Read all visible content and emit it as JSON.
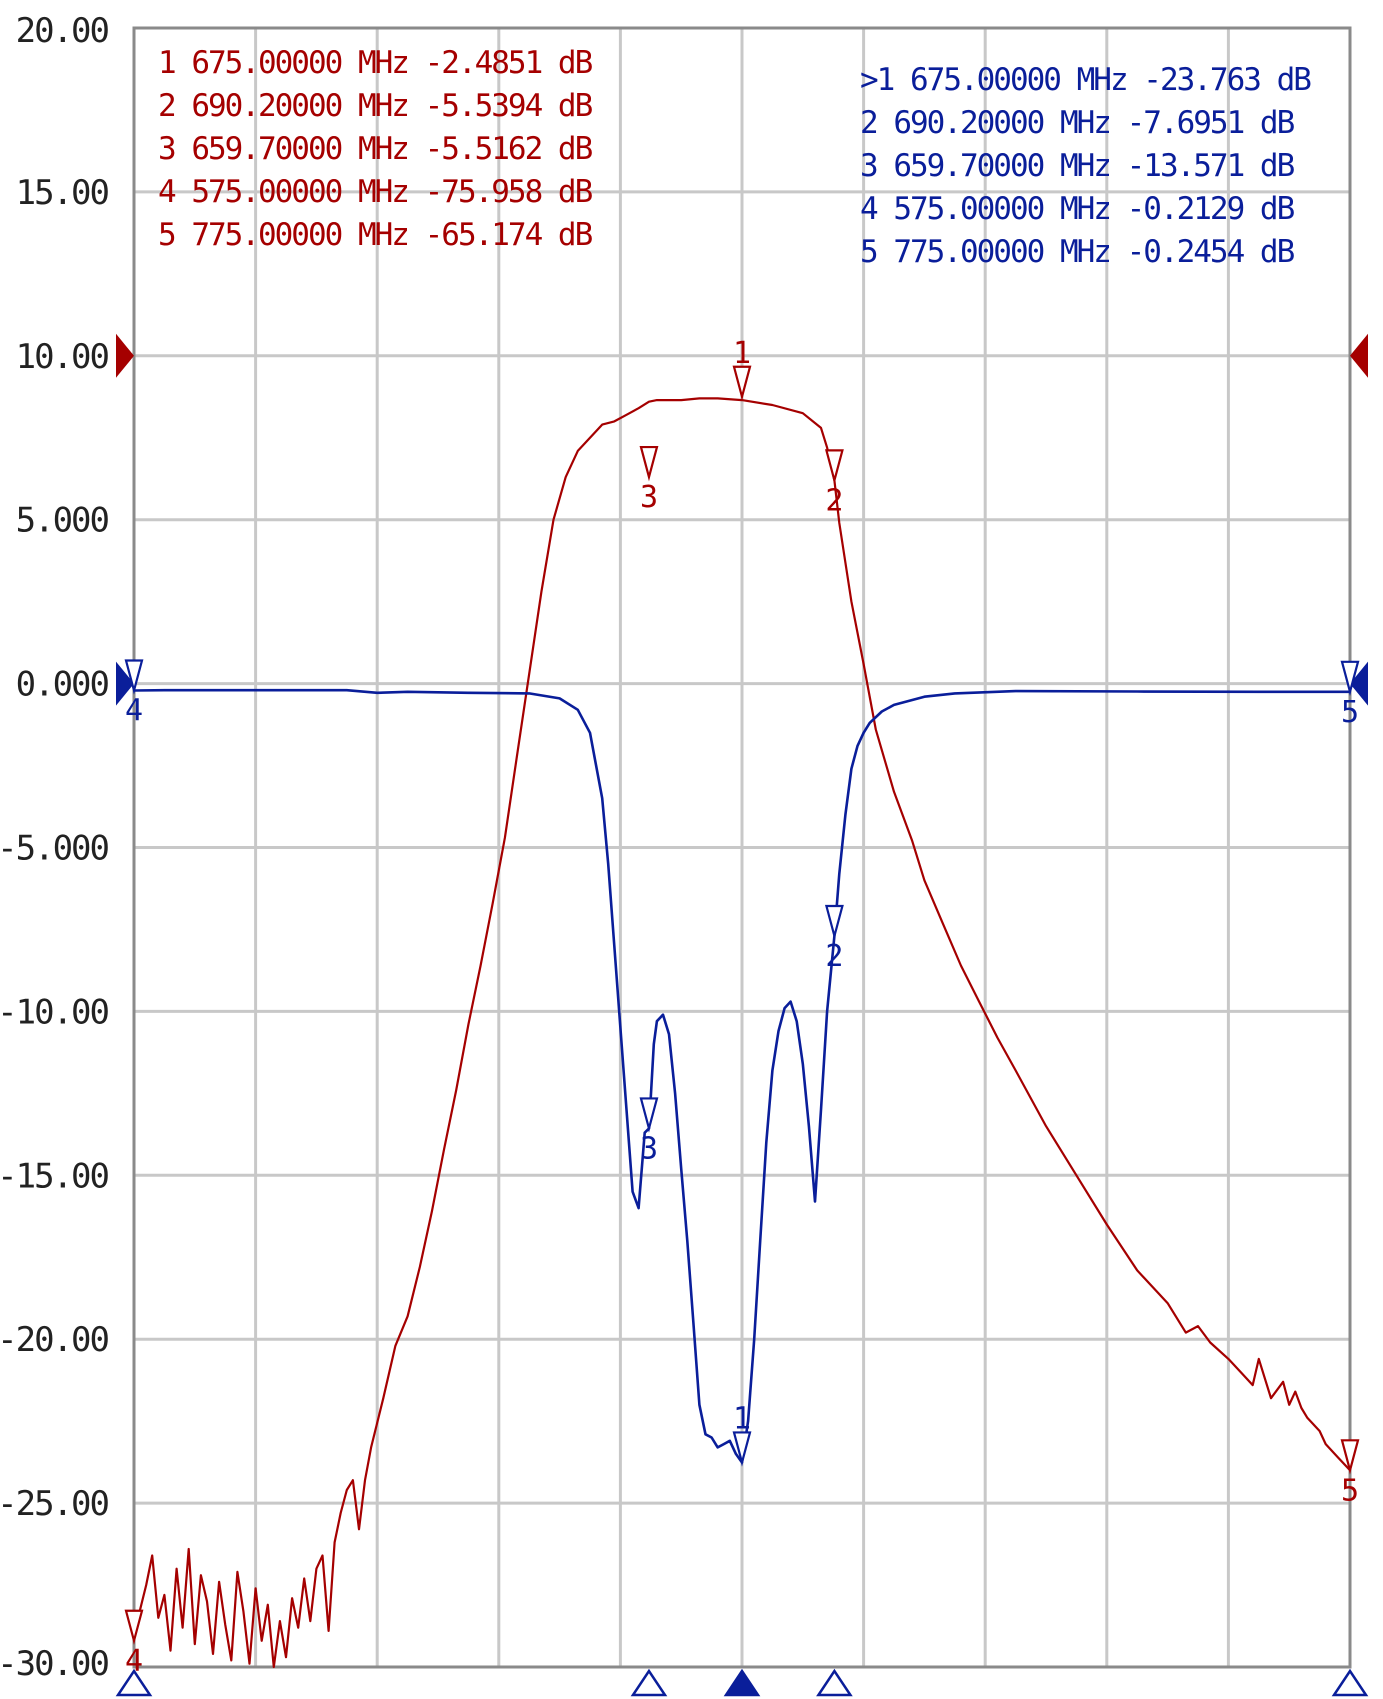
{
  "colors": {
    "trace_red": "#a50000",
    "trace_blue": "#0a1e9a",
    "grid": "#c8c8c8",
    "frame": "#8a8a8a",
    "background": "#ffffff"
  },
  "chart_data": {
    "type": "line",
    "title": "",
    "xlabel": "",
    "ylabel": "",
    "x_unit": "MHz",
    "xlim": [
      575,
      775
    ],
    "ylim": [
      -30,
      20
    ],
    "x_divisions": 10,
    "grid": true,
    "y_ticks": [
      "20.00",
      "15.00",
      "10.00",
      "5.000",
      "0.000",
      "-5.000",
      "-10.00",
      "-15.00",
      "-20.00",
      "-25.00",
      "-30.00"
    ],
    "y_tick_values": [
      20,
      15,
      10,
      5,
      0,
      -5,
      -10,
      -15,
      -20,
      -25,
      -30
    ],
    "reference_level": {
      "red": 10,
      "blue": 0
    },
    "marker_table_red": [
      "1   675.00000 MHz  -2.4851 dB",
      "2   690.20000 MHz  -5.5394 dB",
      "3   659.70000 MHz  -5.5162 dB",
      "4   575.00000 MHz  -75.958 dB",
      "5   775.00000 MHz  -65.174 dB"
    ],
    "marker_table_blue": [
      ">1  675.00000 MHz  -23.763 dB",
      " 2  690.20000 MHz  -7.6951 dB",
      " 3  659.70000 MHz  -13.571 dB",
      " 4  575.00000 MHz  -0.2129 dB",
      " 5  775.00000 MHz  -0.2454 dB"
    ],
    "series": [
      {
        "color": "#a50000",
        "x": [
          575,
          577,
          578,
          579,
          580,
          581,
          582,
          583,
          584,
          585,
          586,
          587,
          588,
          589,
          590,
          591,
          592,
          593,
          594,
          595,
          596,
          597,
          598,
          599,
          600,
          601,
          602,
          603,
          604,
          605,
          606,
          607,
          608,
          609,
          610,
          611,
          612,
          613,
          614,
          616,
          618,
          620,
          622,
          624,
          626,
          628,
          630,
          632,
          634,
          636,
          638,
          640,
          642,
          644,
          646,
          648,
          650,
          652,
          654,
          656,
          658,
          659.7,
          661,
          663,
          665,
          668,
          671,
          675,
          680,
          685,
          688,
          689,
          690.2,
          691,
          693,
          695,
          697,
          700,
          703,
          705,
          708,
          711,
          714,
          717,
          720,
          725,
          730,
          735,
          740,
          745,
          748,
          750,
          752,
          755,
          757,
          759,
          760,
          762,
          764,
          765,
          766,
          767,
          768,
          770,
          771,
          773,
          775
        ],
        "y": [
          -29.0,
          -27.5,
          -26.6,
          -28.5,
          -27.8,
          -29.5,
          -27.0,
          -28.8,
          -26.4,
          -29.3,
          -27.2,
          -28.0,
          -29.6,
          -27.4,
          -28.7,
          -29.8,
          -27.1,
          -28.3,
          -29.9,
          -27.6,
          -29.2,
          -28.1,
          -30.0,
          -28.6,
          -29.7,
          -27.9,
          -28.8,
          -27.3,
          -28.6,
          -27.0,
          -26.6,
          -28.9,
          -26.2,
          -25.3,
          -24.6,
          -24.3,
          -25.8,
          -24.3,
          -23.3,
          -21.8,
          -20.2,
          -19.3,
          -17.8,
          -16.1,
          -14.2,
          -12.4,
          -10.4,
          -8.6,
          -6.7,
          -4.7,
          -2.2,
          0.3,
          2.8,
          5.0,
          6.3,
          7.1,
          7.5,
          7.9,
          8.0,
          8.2,
          8.4,
          8.6,
          8.65,
          8.65,
          8.65,
          8.7,
          8.7,
          8.65,
          8.5,
          8.25,
          7.8,
          7.2,
          6.2,
          4.9,
          2.5,
          0.6,
          -1.4,
          -3.3,
          -4.8,
          -6.0,
          -7.3,
          -8.6,
          -9.7,
          -10.8,
          -11.8,
          -13.5,
          -15.0,
          -16.5,
          -17.9,
          -18.9,
          -19.8,
          -19.6,
          -20.1,
          -20.6,
          -21.0,
          -21.4,
          -20.6,
          -21.8,
          -21.3,
          -22.0,
          -21.6,
          -22.1,
          -22.4,
          -22.8,
          -23.2,
          -23.6,
          -24.0
        ]
      },
      {
        "color": "#0a1e9a",
        "x": [
          575,
          580,
          590,
          600,
          610,
          615,
          620,
          630,
          640,
          645,
          648,
          650,
          652,
          653,
          654,
          655,
          656,
          657,
          658,
          659,
          659.7,
          660.5,
          661,
          662,
          663,
          664,
          665,
          666,
          667,
          668,
          669,
          670,
          671,
          672,
          673,
          674,
          675,
          676,
          677,
          678,
          679,
          680,
          681,
          682,
          683,
          684,
          685,
          686,
          687,
          688,
          689,
          690.2,
          691,
          692,
          693,
          694,
          695,
          696,
          698,
          700,
          705,
          710,
          720,
          740,
          760,
          775
        ],
        "y": [
          -0.21,
          -0.2,
          -0.2,
          -0.2,
          -0.2,
          -0.28,
          -0.25,
          -0.28,
          -0.3,
          -0.45,
          -0.8,
          -1.5,
          -3.5,
          -5.5,
          -8.0,
          -10.5,
          -13.0,
          -15.5,
          -16.0,
          -13.7,
          -13.57,
          -11.0,
          -10.3,
          -10.1,
          -10.7,
          -12.5,
          -14.8,
          -17.0,
          -19.5,
          -22.0,
          -22.9,
          -23.0,
          -23.3,
          -23.2,
          -23.1,
          -23.5,
          -23.76,
          -22.5,
          -20.0,
          -17.0,
          -14.0,
          -11.8,
          -10.6,
          -9.9,
          -9.7,
          -10.3,
          -11.6,
          -13.5,
          -15.8,
          -13.0,
          -10.0,
          -7.7,
          -5.8,
          -4.0,
          -2.6,
          -1.9,
          -1.5,
          -1.2,
          -0.85,
          -0.65,
          -0.4,
          -0.3,
          -0.23,
          -0.24,
          -0.25,
          -0.25
        ]
      }
    ],
    "markers": {
      "red": [
        {
          "id": "1",
          "x": 675,
          "y": 8.75,
          "label": "1"
        },
        {
          "id": "2",
          "x": 690.2,
          "y": 6.2,
          "label": "2"
        },
        {
          "id": "3",
          "x": 659.7,
          "y": 6.3,
          "label": "3"
        },
        {
          "id": "4",
          "x": 575,
          "y": -29.2,
          "label": "4"
        },
        {
          "id": "5",
          "x": 775,
          "y": -24.0,
          "label": "5"
        }
      ],
      "blue": [
        {
          "id": "1",
          "x": 675,
          "y": -23.76,
          "label": "1"
        },
        {
          "id": "2",
          "x": 690.2,
          "y": -7.7,
          "label": "2"
        },
        {
          "id": "3",
          "x": 659.7,
          "y": -13.57,
          "label": "3"
        },
        {
          "id": "4",
          "x": 575,
          "y": -0.21,
          "label": "4"
        },
        {
          "id": "5",
          "x": 775,
          "y": -0.25,
          "label": "5"
        }
      ]
    },
    "bottom_markers_x": [
      575,
      659.7,
      675,
      690.2,
      775
    ],
    "active_bottom_marker_x": 675
  }
}
